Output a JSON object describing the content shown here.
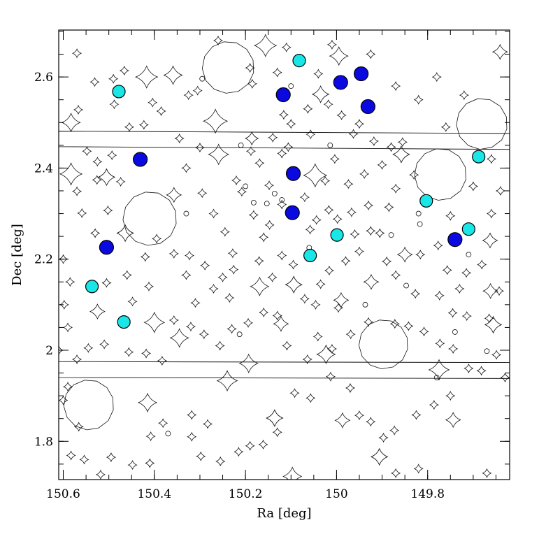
{
  "chart_data": {
    "type": "scatter",
    "title": "",
    "xlabel": "Ra [deg]",
    "ylabel": "Dec [deg]",
    "xlim": [
      150.61,
      149.62
    ],
    "ylim": [
      1.716,
      2.703
    ],
    "x_ticks": [
      150.6,
      150.4,
      150.2,
      150,
      149.8
    ],
    "x_tick_labels": [
      "150.6",
      "150.4",
      "150.2",
      "150",
      "149.8"
    ],
    "y_ticks": [
      1.8,
      2.0,
      2.2,
      2.4,
      2.6
    ],
    "y_tick_labels": [
      "1.8",
      "2",
      "2.2",
      "2.4",
      "2.6"
    ],
    "grid": false,
    "colors": {
      "cyan_points": "#19e6e6",
      "blue_points": "#0a0ae0",
      "outline": "#111111"
    },
    "series": [
      {
        "color": "#19e6e6",
        "marker_radius": 9,
        "points": [
          {
            "x": 150.082,
            "y": 2.636
          },
          {
            "x": 150.478,
            "y": 2.568
          },
          {
            "x": 149.688,
            "y": 2.425
          },
          {
            "x": 149.803,
            "y": 2.328
          },
          {
            "x": 149.71,
            "y": 2.266
          },
          {
            "x": 149.999,
            "y": 2.253
          },
          {
            "x": 150.058,
            "y": 2.208
          },
          {
            "x": 150.537,
            "y": 2.14
          },
          {
            "x": 150.467,
            "y": 2.062
          }
        ]
      },
      {
        "color": "#0a0ae0",
        "marker_radius": 10,
        "points": [
          {
            "x": 149.946,
            "y": 2.607
          },
          {
            "x": 149.991,
            "y": 2.588
          },
          {
            "x": 150.117,
            "y": 2.561
          },
          {
            "x": 149.931,
            "y": 2.535
          },
          {
            "x": 150.431,
            "y": 2.419
          },
          {
            "x": 150.095,
            "y": 2.388
          },
          {
            "x": 150.097,
            "y": 2.302
          },
          {
            "x": 149.74,
            "y": 2.243
          },
          {
            "x": 150.505,
            "y": 2.226
          }
        ]
      }
    ],
    "mask_regions": {
      "circles": [
        {
          "x": 150.238,
          "y": 2.621,
          "r": 0.057
        },
        {
          "x": 149.681,
          "y": 2.497,
          "r": 0.056
        },
        {
          "x": 149.772,
          "y": 2.386,
          "r": 0.057
        },
        {
          "x": 150.41,
          "y": 2.289,
          "r": 0.059
        },
        {
          "x": 149.897,
          "y": 2.013,
          "r": 0.054
        },
        {
          "x": 150.544,
          "y": 1.88,
          "r": 0.055
        }
      ],
      "stars": [
        {
          "x": 150.417,
          "y": 2.6,
          "s": 0.024
        },
        {
          "x": 150.156,
          "y": 2.669,
          "s": 0.024
        },
        {
          "x": 150.359,
          "y": 2.604,
          "s": 0.02
        },
        {
          "x": 150.266,
          "y": 2.503,
          "s": 0.026
        },
        {
          "x": 150.035,
          "y": 2.562,
          "s": 0.018
        },
        {
          "x": 149.995,
          "y": 2.646,
          "s": 0.02
        },
        {
          "x": 150.583,
          "y": 2.387,
          "s": 0.024
        },
        {
          "x": 150.259,
          "y": 2.43,
          "s": 0.022
        },
        {
          "x": 150.047,
          "y": 2.384,
          "s": 0.025
        },
        {
          "x": 149.858,
          "y": 2.43,
          "s": 0.018
        },
        {
          "x": 150.505,
          "y": 2.38,
          "s": 0.018
        },
        {
          "x": 150.357,
          "y": 2.341,
          "s": 0.016
        },
        {
          "x": 149.85,
          "y": 2.21,
          "s": 0.016
        },
        {
          "x": 149.663,
          "y": 2.241,
          "s": 0.016
        },
        {
          "x": 150.169,
          "y": 2.14,
          "s": 0.02
        },
        {
          "x": 150.094,
          "y": 2.144,
          "s": 0.018
        },
        {
          "x": 150.4,
          "y": 2.061,
          "s": 0.022
        },
        {
          "x": 150.345,
          "y": 2.027,
          "s": 0.02
        },
        {
          "x": 150.193,
          "y": 1.971,
          "s": 0.02
        },
        {
          "x": 150.023,
          "y": 1.991,
          "s": 0.02
        },
        {
          "x": 149.775,
          "y": 1.957,
          "s": 0.022
        },
        {
          "x": 149.656,
          "y": 2.056,
          "s": 0.018
        },
        {
          "x": 150.24,
          "y": 1.933,
          "s": 0.022
        },
        {
          "x": 150.415,
          "y": 1.885,
          "s": 0.02
        },
        {
          "x": 150.097,
          "y": 1.723,
          "s": 0.02
        },
        {
          "x": 149.906,
          "y": 1.766,
          "s": 0.018
        },
        {
          "x": 150.525,
          "y": 2.085,
          "s": 0.016
        },
        {
          "x": 149.99,
          "y": 2.11,
          "s": 0.016
        },
        {
          "x": 150.186,
          "y": 2.465,
          "s": 0.014
        },
        {
          "x": 149.662,
          "y": 2.13,
          "s": 0.016
        },
        {
          "x": 149.744,
          "y": 1.847,
          "s": 0.016
        },
        {
          "x": 149.641,
          "y": 2.655,
          "s": 0.016
        },
        {
          "x": 150.136,
          "y": 1.851,
          "s": 0.018
        },
        {
          "x": 149.987,
          "y": 1.846,
          "s": 0.016
        },
        {
          "x": 150.464,
          "y": 2.257,
          "s": 0.018
        },
        {
          "x": 150.583,
          "y": 2.5,
          "s": 0.02
        },
        {
          "x": 149.924,
          "y": 2.15,
          "s": 0.016
        },
        {
          "x": 150.122,
          "y": 2.058,
          "s": 0.016
        }
      ],
      "diamonds": [
        [
          150.57,
          2.652
        ],
        [
          150.49,
          2.596
        ],
        [
          150.466,
          2.614
        ],
        [
          150.531,
          2.589
        ],
        [
          150.488,
          2.54
        ],
        [
          150.404,
          2.544
        ],
        [
          150.423,
          2.495
        ],
        [
          150.455,
          2.49
        ],
        [
          150.567,
          2.528
        ],
        [
          150.548,
          2.437
        ],
        [
          150.493,
          2.428
        ],
        [
          150.525,
          2.414
        ],
        [
          150.57,
          2.349
        ],
        [
          150.526,
          2.374
        ],
        [
          150.474,
          2.37
        ],
        [
          150.502,
          2.307
        ],
        [
          150.559,
          2.301
        ],
        [
          150.53,
          2.257
        ],
        [
          150.357,
          2.212
        ],
        [
          150.323,
          2.208
        ],
        [
          150.289,
          2.186
        ],
        [
          150.226,
          2.177
        ],
        [
          150.228,
          2.213
        ],
        [
          150.17,
          2.196
        ],
        [
          150.16,
          2.248
        ],
        [
          150.147,
          2.275
        ],
        [
          150.182,
          2.297
        ],
        [
          150.208,
          2.348
        ],
        [
          150.22,
          2.373
        ],
        [
          150.148,
          2.362
        ],
        [
          150.169,
          2.411
        ],
        [
          150.188,
          2.437
        ],
        [
          150.12,
          2.432
        ],
        [
          150.106,
          2.446
        ],
        [
          150.14,
          2.467
        ],
        [
          150.057,
          2.474
        ],
        [
          150.116,
          2.517
        ],
        [
          150.1,
          2.497
        ],
        [
          150.063,
          2.53
        ],
        [
          150.018,
          2.54
        ],
        [
          149.989,
          2.516
        ],
        [
          149.963,
          2.475
        ],
        [
          149.95,
          2.497
        ],
        [
          149.918,
          2.459
        ],
        [
          149.88,
          2.446
        ],
        [
          149.855,
          2.457
        ],
        [
          149.9,
          2.407
        ],
        [
          149.939,
          2.387
        ],
        [
          149.974,
          2.365
        ],
        [
          149.87,
          2.355
        ],
        [
          149.885,
          2.314
        ],
        [
          149.93,
          2.318
        ],
        [
          149.967,
          2.303
        ],
        [
          149.998,
          2.288
        ],
        [
          150.017,
          2.308
        ],
        [
          150.044,
          2.286
        ],
        [
          149.925,
          2.262
        ],
        [
          149.905,
          2.257
        ],
        [
          149.816,
          2.21
        ],
        [
          149.777,
          2.23
        ],
        [
          149.757,
          2.176
        ],
        [
          149.715,
          2.17
        ],
        [
          149.681,
          2.188
        ],
        [
          149.643,
          2.13
        ],
        [
          149.665,
          2.07
        ],
        [
          149.714,
          2.075
        ],
        [
          149.745,
          2.082
        ],
        [
          149.73,
          2.135
        ],
        [
          149.774,
          2.12
        ],
        [
          149.827,
          2.124
        ],
        [
          149.87,
          2.165
        ],
        [
          149.89,
          2.195
        ],
        [
          149.95,
          2.217
        ],
        [
          149.98,
          2.196
        ],
        [
          150.016,
          2.175
        ],
        [
          150.035,
          2.145
        ],
        [
          150.07,
          2.113
        ],
        [
          150.046,
          2.1
        ],
        [
          149.996,
          2.093
        ],
        [
          149.969,
          2.035
        ],
        [
          149.93,
          2.062
        ],
        [
          149.872,
          2.058
        ],
        [
          149.842,
          2.053
        ],
        [
          149.808,
          2.041
        ],
        [
          149.773,
          2.015
        ],
        [
          149.744,
          2.003
        ],
        [
          149.71,
          1.96
        ],
        [
          149.682,
          1.955
        ],
        [
          149.649,
          1.99
        ],
        [
          149.63,
          1.94
        ],
        [
          149.75,
          1.9
        ],
        [
          149.786,
          1.88
        ],
        [
          149.825,
          1.858
        ],
        [
          149.873,
          1.824
        ],
        [
          149.897,
          1.808
        ],
        [
          149.925,
          1.843
        ],
        [
          149.95,
          1.857
        ],
        [
          149.97,
          1.917
        ],
        [
          150.013,
          1.942
        ],
        [
          150.057,
          1.895
        ],
        [
          150.092,
          1.906
        ],
        [
          150.13,
          1.82
        ],
        [
          150.161,
          1.793
        ],
        [
          150.19,
          1.79
        ],
        [
          150.215,
          1.777
        ],
        [
          150.255,
          1.756
        ],
        [
          150.298,
          1.767
        ],
        [
          150.318,
          1.81
        ],
        [
          150.283,
          1.838
        ],
        [
          150.318,
          1.858
        ],
        [
          150.381,
          1.84
        ],
        [
          150.408,
          1.811
        ],
        [
          150.41,
          1.752
        ],
        [
          150.448,
          1.748
        ],
        [
          150.495,
          1.765
        ],
        [
          150.518,
          1.727
        ],
        [
          150.554,
          1.76
        ],
        [
          150.583,
          1.769
        ],
        [
          150.566,
          1.832
        ],
        [
          150.59,
          1.92
        ],
        [
          150.57,
          1.98
        ],
        [
          150.545,
          2.005
        ],
        [
          150.51,
          2.013
        ],
        [
          150.456,
          1.996
        ],
        [
          150.418,
          1.993
        ],
        [
          150.383,
          1.977
        ],
        [
          150.357,
          2.066
        ],
        [
          150.32,
          2.052
        ],
        [
          150.291,
          2.035
        ],
        [
          150.256,
          2.01
        ],
        [
          150.23,
          2.047
        ],
        [
          150.194,
          2.06
        ],
        [
          150.16,
          2.083
        ],
        [
          150.13,
          2.076
        ],
        [
          150.109,
          2.01
        ],
        [
          150.064,
          1.98
        ],
        [
          150.041,
          2.03
        ],
        [
          150.01,
          2.003
        ],
        [
          150.095,
          2.188
        ],
        [
          150.12,
          2.208
        ],
        [
          150.141,
          2.16
        ],
        [
          150.235,
          2.115
        ],
        [
          150.27,
          2.135
        ],
        [
          150.31,
          2.104
        ],
        [
          150.33,
          2.165
        ],
        [
          150.42,
          2.205
        ],
        [
          150.395,
          2.245
        ],
        [
          150.412,
          2.14
        ],
        [
          150.448,
          2.107
        ],
        [
          150.46,
          2.165
        ],
        [
          150.505,
          2.148
        ],
        [
          150.6,
          2.2
        ],
        [
          150.585,
          2.15
        ],
        [
          150.598,
          2.1
        ],
        [
          150.59,
          2.05
        ],
        [
          150.61,
          2.0
        ],
        [
          150.6,
          1.89
        ],
        [
          150.11,
          2.665
        ],
        [
          150.01,
          2.671
        ],
        [
          149.925,
          2.65
        ],
        [
          149.87,
          2.58
        ],
        [
          149.82,
          2.55
        ],
        [
          149.78,
          2.6
        ],
        [
          149.72,
          2.56
        ],
        [
          149.76,
          2.49
        ],
        [
          149.66,
          2.42
        ],
        [
          149.64,
          2.35
        ],
        [
          149.66,
          2.3
        ],
        [
          149.7,
          2.36
        ],
        [
          149.83,
          2.385
        ],
        [
          149.75,
          2.295
        ],
        [
          150.004,
          2.42
        ],
        [
          150.025,
          2.372
        ],
        [
          150.07,
          2.336
        ],
        [
          150.058,
          2.265
        ],
        [
          150.12,
          2.32
        ],
        [
          150.245,
          2.26
        ],
        [
          150.27,
          2.3
        ],
        [
          150.295,
          2.345
        ],
        [
          150.33,
          2.4
        ],
        [
          150.3,
          2.445
        ],
        [
          150.345,
          2.465
        ],
        [
          150.385,
          2.525
        ],
        [
          150.325,
          2.56
        ],
        [
          150.305,
          2.57
        ],
        [
          150.26,
          2.68
        ],
        [
          150.19,
          2.62
        ],
        [
          150.185,
          2.585
        ],
        [
          150.13,
          2.61
        ],
        [
          150.04,
          2.607
        ],
        [
          150.25,
          2.16
        ],
        [
          149.96,
          2.255
        ],
        [
          149.87,
          1.73
        ],
        [
          149.82,
          1.74
        ],
        [
          149.67,
          1.73
        ]
      ],
      "dots": [
        [
          150.295,
          2.596
        ],
        [
          150.21,
          2.45
        ],
        [
          150.2,
          2.36
        ],
        [
          150.182,
          2.324
        ],
        [
          150.153,
          2.322
        ],
        [
          150.136,
          2.344
        ],
        [
          150.12,
          2.33
        ],
        [
          150.06,
          2.225
        ],
        [
          149.88,
          2.253
        ],
        [
          149.817,
          2.277
        ],
        [
          149.847,
          2.142
        ],
        [
          149.74,
          2.04
        ],
        [
          149.67,
          1.998
        ],
        [
          149.937,
          2.1
        ],
        [
          150.213,
          2.035
        ],
        [
          150.37,
          1.817
        ],
        [
          149.78,
          1.94
        ],
        [
          150.33,
          2.3
        ],
        [
          149.82,
          2.3
        ],
        [
          150.014,
          2.45
        ],
        [
          150.1,
          2.58
        ],
        [
          149.71,
          2.21
        ]
      ],
      "stripes": [
        {
          "x0": 150.61,
          "x1": 149.62,
          "y0_left": 2.481,
          "y0_right": 2.476,
          "y1_left": 2.447,
          "y1_right": 2.441
        },
        {
          "x0": 150.61,
          "x1": 149.62,
          "y0_left": 1.975,
          "y0_right": 1.973,
          "y1_left": 1.94,
          "y1_right": 1.938
        }
      ]
    }
  }
}
